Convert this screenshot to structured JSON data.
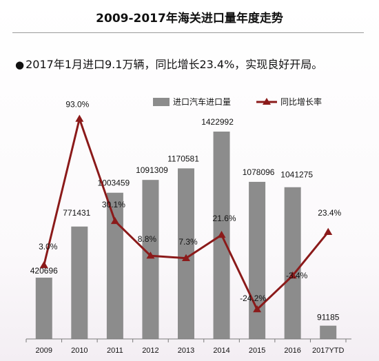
{
  "title": "2009-2017年海关进口量年度走势",
  "bullet": {
    "dot": "●",
    "text": "2017年1月进口9.1万辆，同比增长23.4%，实现良好开局。"
  },
  "colors": {
    "bar": "#8c8c8c",
    "line": "#8b1a1a",
    "axis": "#7a7a7a"
  },
  "chart_data": {
    "type": "bar+line",
    "categories": [
      "2009",
      "2010",
      "2011",
      "2012",
      "2013",
      "2014",
      "2015",
      "2016",
      "2017YTD"
    ],
    "series": [
      {
        "name": "进口汽车进口量",
        "type": "bar",
        "values": [
          420696,
          771431,
          1003459,
          1091309,
          1170581,
          1422992,
          1078096,
          1041275,
          91185
        ],
        "labels": [
          "420696",
          "771431",
          "1003459",
          "1091309",
          "1170581",
          "1422992",
          "1078096",
          "1041275",
          "91185"
        ]
      },
      {
        "name": "同比增长率",
        "type": "line",
        "values": [
          3.0,
          93.0,
          30.1,
          8.8,
          7.3,
          21.6,
          -24.2,
          -3.4,
          23.4
        ],
        "labels": [
          "3.0%",
          "93.0%",
          "30.1%",
          "8.8%",
          "7.3%",
          "21.6%",
          "-24.2%",
          "-3.4%",
          "23.4%"
        ]
      }
    ],
    "legend_position": "top-right",
    "grid": false
  }
}
